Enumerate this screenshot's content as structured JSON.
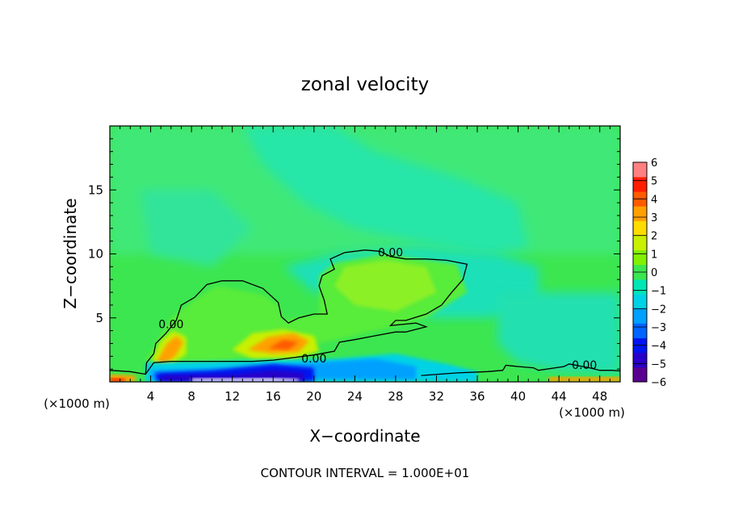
{
  "chart_data": {
    "type": "heatmap",
    "title": "zonal velocity",
    "xlabel": "X−coordinate",
    "ylabel": "Z−coordinate",
    "x_unit_left": "(×1000 m)",
    "x_unit_right": "(×1000 m)",
    "footer": "CONTOUR INTERVAL = 1.000E+01",
    "xlim": [
      0,
      50
    ],
    "ylim": [
      0,
      20
    ],
    "x_ticks": [
      {
        "value": 4,
        "label": "4"
      },
      {
        "value": 8,
        "label": "8"
      },
      {
        "value": 12,
        "label": "12"
      },
      {
        "value": 16,
        "label": "16"
      },
      {
        "value": 20,
        "label": "20"
      },
      {
        "value": 24,
        "label": "24"
      },
      {
        "value": 28,
        "label": "28"
      },
      {
        "value": 32,
        "label": "32"
      },
      {
        "value": 36,
        "label": "36"
      },
      {
        "value": 40,
        "label": "40"
      },
      {
        "value": 44,
        "label": "44"
      },
      {
        "value": 48,
        "label": "48"
      }
    ],
    "y_ticks": [
      {
        "value": 5,
        "label": "5"
      },
      {
        "value": 10,
        "label": "10"
      },
      {
        "value": 15,
        "label": "15"
      }
    ],
    "colorbar": {
      "min": -6,
      "max": 6,
      "labels": [
        "6",
        "5",
        "4",
        "3",
        "2",
        "1",
        "0",
        "−1",
        "−2",
        "−3",
        "−4",
        "−5",
        "−6"
      ],
      "colors": [
        "#5a0090",
        "#2800c8",
        "#0014f0",
        "#0064ff",
        "#00a0ff",
        "#00d2e6",
        "#00e6b4",
        "#3ce650",
        "#82f000",
        "#c8f000",
        "#ffdc00",
        "#ffa000",
        "#ff5a00",
        "#ff1e00",
        "#ff8080"
      ]
    },
    "background_color": "#3ce650",
    "regions": [
      {
        "name": "upper-band",
        "value": -0.8,
        "color": "#40e878",
        "points": [
          [
            0,
            20
          ],
          [
            50,
            20
          ],
          [
            50,
            10
          ],
          [
            0,
            10
          ]
        ]
      },
      {
        "name": "cyan-plume-top",
        "value": -1.5,
        "color": "#26e6a8",
        "points": [
          [
            13,
            20
          ],
          [
            22,
            20
          ],
          [
            26,
            18
          ],
          [
            34,
            16
          ],
          [
            40,
            14
          ],
          [
            41,
            10.5
          ],
          [
            37,
            10
          ],
          [
            30,
            11
          ],
          [
            24,
            12
          ],
          [
            19,
            14
          ],
          [
            15,
            17
          ]
        ]
      },
      {
        "name": "cyan-plume-mid",
        "value": -1.7,
        "color": "#1ee0b8",
        "points": [
          [
            17,
            9
          ],
          [
            22,
            10
          ],
          [
            30,
            10.5
          ],
          [
            38,
            10
          ],
          [
            42,
            9
          ],
          [
            42,
            6
          ],
          [
            37,
            5
          ],
          [
            32,
            5
          ],
          [
            26,
            6
          ],
          [
            20,
            7
          ]
        ]
      },
      {
        "name": "left-cyan-patch",
        "value": -1.2,
        "color": "#30e49a",
        "points": [
          [
            3,
            15
          ],
          [
            10,
            15
          ],
          [
            14,
            12
          ],
          [
            10,
            9
          ],
          [
            4,
            10
          ]
        ]
      },
      {
        "name": "right-cyan",
        "value": -1.6,
        "color": "#20e0b0",
        "points": [
          [
            38,
            7
          ],
          [
            50,
            7
          ],
          [
            50,
            0.6
          ],
          [
            44,
            0.8
          ],
          [
            40,
            1.5
          ],
          [
            38,
            3
          ]
        ]
      },
      {
        "name": "inner-contour-region",
        "value": 0.3,
        "color": "#58ec3a",
        "points": [
          [
            6,
            5
          ],
          [
            8.5,
            6.5
          ],
          [
            10.5,
            7.5
          ],
          [
            15,
            6.8
          ],
          [
            16.5,
            6
          ],
          [
            17,
            4.8
          ],
          [
            20.5,
            5.3
          ],
          [
            20.5,
            8.3
          ],
          [
            22,
            9.3
          ],
          [
            27,
            10
          ],
          [
            34,
            9.2
          ],
          [
            35,
            7
          ],
          [
            31,
            5
          ],
          [
            26,
            4
          ],
          [
            21,
            3.1
          ],
          [
            15,
            2
          ],
          [
            9,
            1.4
          ],
          [
            3.4,
            1.5
          ],
          [
            4.5,
            3
          ]
        ]
      },
      {
        "name": "yellow-green-core",
        "value": 0.8,
        "color": "#8cf028",
        "points": [
          [
            23,
            9
          ],
          [
            27,
            9.5
          ],
          [
            31,
            9
          ],
          [
            32,
            7
          ],
          [
            28,
            5.5
          ],
          [
            24,
            6
          ],
          [
            22,
            7.5
          ]
        ]
      },
      {
        "name": "lower-left-warm",
        "value": 1.3,
        "color": "#c8f000",
        "points": [
          [
            4.2,
            1.8
          ],
          [
            5,
            3.2
          ],
          [
            6.2,
            4
          ],
          [
            7.5,
            3.5
          ],
          [
            7.5,
            2.2
          ],
          [
            6,
            1.3
          ],
          [
            4.5,
            1.3
          ]
        ]
      },
      {
        "name": "lower-mid-warm",
        "value": 1.2,
        "color": "#c8f000",
        "points": [
          [
            12,
            2.5
          ],
          [
            14,
            3.8
          ],
          [
            17,
            4.1
          ],
          [
            20,
            3.6
          ],
          [
            20.5,
            2.4
          ],
          [
            18,
            1.8
          ],
          [
            14,
            1.8
          ]
        ]
      },
      {
        "name": "left-orange",
        "value": 2.7,
        "color": "#ffa000",
        "points": [
          [
            4.6,
            1.6
          ],
          [
            5.6,
            3
          ],
          [
            6.5,
            3.6
          ],
          [
            7.2,
            3.1
          ],
          [
            6.4,
            2
          ],
          [
            5,
            1.2
          ]
        ]
      },
      {
        "name": "mid-orange",
        "value": 2.6,
        "color": "#ffa000",
        "points": [
          [
            13.5,
            2.5
          ],
          [
            15.5,
            3.5
          ],
          [
            18,
            3.8
          ],
          [
            19.5,
            3.2
          ],
          [
            18.5,
            2.3
          ],
          [
            16,
            2.2
          ]
        ]
      },
      {
        "name": "mid-red",
        "value": 4.0,
        "color": "#ff5a00",
        "points": [
          [
            15.5,
            2.6
          ],
          [
            17,
            3.3
          ],
          [
            18.5,
            3.1
          ],
          [
            17.5,
            2.5
          ]
        ]
      },
      {
        "name": "surface-cyan",
        "value": -2.2,
        "color": "#00d2e6",
        "points": [
          [
            3.5,
            1.5
          ],
          [
            22,
            1.8
          ],
          [
            28,
            2.2
          ],
          [
            33,
            1.4
          ],
          [
            36,
            0.8
          ],
          [
            36,
            0
          ],
          [
            3.5,
            0
          ]
        ]
      },
      {
        "name": "surface-blue",
        "value": -3.2,
        "color": "#00a0ff",
        "points": [
          [
            4,
            0.9
          ],
          [
            12,
            1.1
          ],
          [
            20,
            1.5
          ],
          [
            26,
            1.8
          ],
          [
            30,
            1.2
          ],
          [
            30,
            0.2
          ],
          [
            4,
            0.2
          ]
        ]
      },
      {
        "name": "surface-dark-blue",
        "value": -4.5,
        "color": "#0014f0",
        "points": [
          [
            4.5,
            0.7
          ],
          [
            10,
            0.9
          ],
          [
            16,
            1.4
          ],
          [
            20,
            1.1
          ],
          [
            20,
            0.05
          ],
          [
            4.5,
            0.05
          ]
        ]
      },
      {
        "name": "surface-navy",
        "value": -5.2,
        "color": "#2800c8",
        "points": [
          [
            5,
            0.5
          ],
          [
            12,
            0.55
          ],
          [
            16,
            0.9
          ],
          [
            19,
            0.7
          ],
          [
            19,
            0.05
          ],
          [
            5,
            0.05
          ]
        ]
      },
      {
        "name": "surface-white",
        "value": 6.5,
        "color": "#ffffff",
        "points": [
          [
            8,
            0.25
          ],
          [
            16,
            0.3
          ],
          [
            18.5,
            0.2
          ],
          [
            18.5,
            0
          ],
          [
            8,
            0
          ]
        ]
      },
      {
        "name": "right-surface-warm",
        "value": 2.5,
        "color": "#ffa000",
        "points": [
          [
            43,
            0.4
          ],
          [
            50,
            0.4
          ],
          [
            50,
            0
          ],
          [
            43,
            0
          ]
        ]
      },
      {
        "name": "left-corner-warm",
        "value": 2.5,
        "color": "#ffa000",
        "points": [
          [
            0,
            0.6
          ],
          [
            2.5,
            0.5
          ],
          [
            2.5,
            0
          ],
          [
            0,
            0
          ]
        ]
      },
      {
        "name": "left-corner-red",
        "value": 4.5,
        "color": "#ff1e00",
        "points": [
          [
            0,
            0.3
          ],
          [
            1.5,
            0.25
          ],
          [
            1.5,
            0
          ],
          [
            0,
            0
          ]
        ]
      }
    ],
    "contours": [
      {
        "level": "0.00",
        "points": [
          [
            0,
            0.9
          ],
          [
            2,
            0.8
          ],
          [
            3.5,
            0.6
          ],
          [
            3.6,
            1.5
          ],
          [
            4.3,
            2.2
          ],
          [
            4.5,
            3
          ],
          [
            5.5,
            3.8
          ],
          [
            6.5,
            4.8
          ],
          [
            7,
            6
          ],
          [
            8.3,
            6.6
          ],
          [
            9.5,
            7.6
          ],
          [
            11,
            7.9
          ],
          [
            13,
            7.9
          ],
          [
            15,
            7.3
          ],
          [
            16.5,
            6.2
          ],
          [
            16.8,
            5.1
          ],
          [
            17.5,
            4.6
          ],
          [
            18.5,
            5
          ],
          [
            20,
            5.3
          ],
          [
            21.3,
            5.3
          ],
          [
            21,
            6.4
          ],
          [
            20.5,
            7.5
          ],
          [
            20.8,
            8.3
          ],
          [
            22,
            8.8
          ],
          [
            21.6,
            9.6
          ],
          [
            23,
            10.1
          ],
          [
            25,
            10.3
          ],
          [
            26.5,
            10.2
          ],
          [
            27.5,
            9.8
          ],
          [
            29,
            9.6
          ],
          [
            31,
            9.6
          ],
          [
            33,
            9.5
          ],
          [
            35,
            9.2
          ],
          [
            34.6,
            8
          ],
          [
            33.5,
            7
          ],
          [
            32.5,
            6
          ],
          [
            31,
            5.3
          ],
          [
            29,
            4.8
          ],
          [
            28,
            4.8
          ],
          [
            27.5,
            4.4
          ],
          [
            30,
            4.6
          ],
          [
            31,
            4.3
          ],
          [
            29,
            3.9
          ],
          [
            28,
            3.9
          ],
          [
            26,
            3.6
          ],
          [
            24,
            3.3
          ],
          [
            22.5,
            3.1
          ],
          [
            22,
            2.4
          ],
          [
            20,
            2.1
          ],
          [
            18,
            1.9
          ],
          [
            16,
            1.7
          ],
          [
            14,
            1.6
          ],
          [
            10,
            1.6
          ],
          [
            6,
            1.6
          ],
          [
            4.3,
            1.5
          ],
          [
            3.5,
            0.6
          ]
        ]
      },
      {
        "level": "0.00",
        "points": [
          [
            30.5,
            0.5
          ],
          [
            34,
            0.7
          ],
          [
            37,
            0.8
          ],
          [
            38.5,
            0.9
          ],
          [
            38.8,
            1.3
          ],
          [
            40,
            1.2
          ],
          [
            41.5,
            1.1
          ],
          [
            42,
            0.9
          ],
          [
            44.5,
            1.2
          ],
          [
            45,
            1.4
          ],
          [
            47,
            1.1
          ],
          [
            48,
            0.9
          ],
          [
            49.2,
            0.9
          ],
          [
            50,
            0.85
          ]
        ]
      }
    ],
    "contour_labels": [
      {
        "text": "0.00",
        "x": 6,
        "y": 4.2
      },
      {
        "text": "0.00",
        "x": 27.5,
        "y": 9.8
      },
      {
        "text": "0.00",
        "x": 20,
        "y": 1.5
      },
      {
        "text": "0.00",
        "x": 46.5,
        "y": 1.0
      }
    ]
  }
}
